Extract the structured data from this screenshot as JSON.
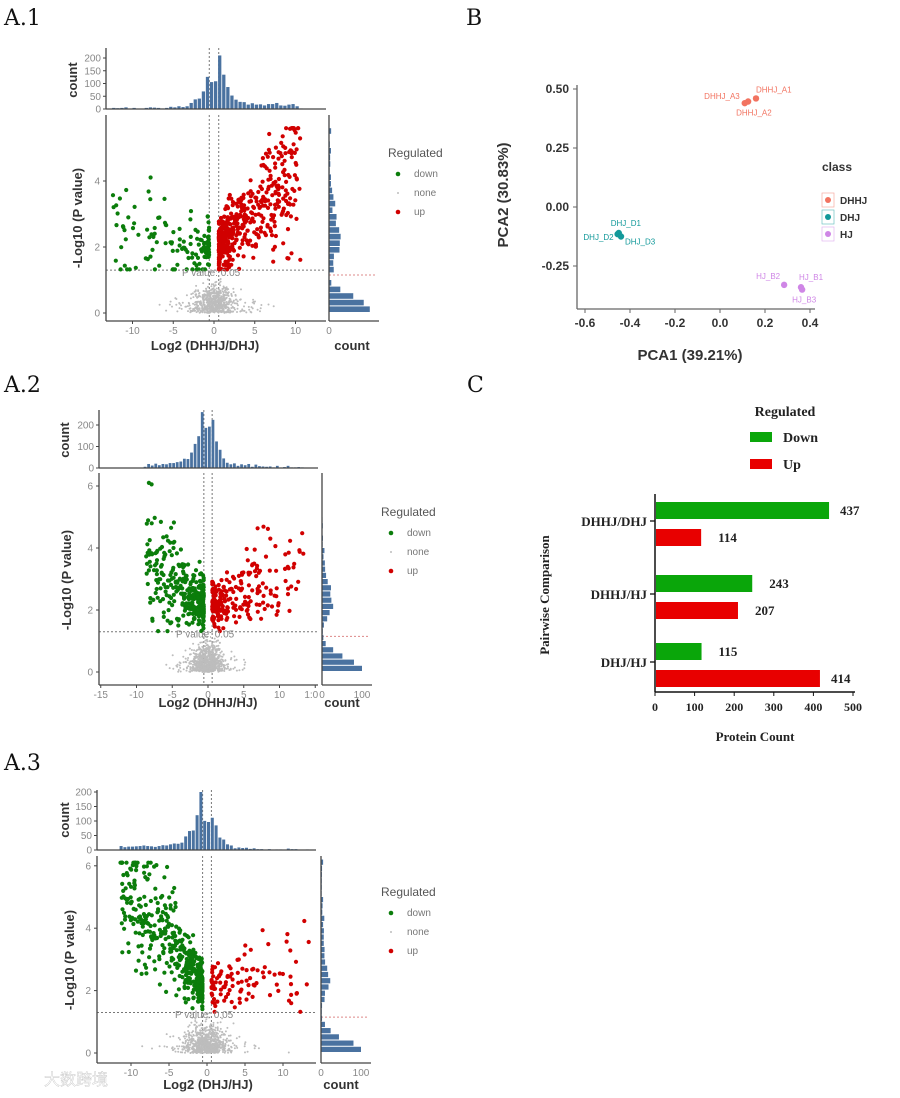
{
  "panel_labels": {
    "a1": "A.1",
    "b": "B",
    "a2": "A.2",
    "c": "C",
    "a3": "A.3"
  },
  "watermark": "大数跨境",
  "chart_data": [
    {
      "id": "a1",
      "type": "scatter",
      "title": "",
      "xlabel": "Log2 (DHHJ/DHJ)",
      "ylabel": "-Log10 (P value)",
      "top_hist_ylabel": "count",
      "right_hist_xlabel": "count",
      "xticks": [
        -10,
        -5,
        0,
        5,
        10
      ],
      "yticks": [
        0,
        2,
        4
      ],
      "top_hist_ticks": [
        0,
        50,
        100,
        150,
        200
      ],
      "right_hist_ticks": [
        0
      ],
      "top_hist_peak": 210,
      "right_hist_max": 48,
      "fc_threshold": 0.58,
      "p_threshold_neglog10": 1.3,
      "threshold_label": "P value: 0.05",
      "legend": {
        "title": "Regulated",
        "items": [
          "down",
          "none",
          "up"
        ]
      },
      "colors": {
        "down": "#0b7d0b",
        "none": "#bdbdbd",
        "up": "#d10000",
        "hist": "#4a72a0"
      },
      "groups": {
        "none": {
          "n": 700,
          "x_sd": 1.6,
          "y_max": 1.3
        },
        "down": {
          "n": 130,
          "x_range": [
            -12.5,
            -0.6
          ],
          "y_range": [
            1.3,
            5.1
          ],
          "trend": 0.1
        },
        "up": {
          "n": 480,
          "x_range": [
            0.6,
            10.8
          ],
          "y_range": [
            1.3,
            5.6
          ],
          "trend": 0.35
        }
      }
    },
    {
      "id": "a2",
      "type": "scatter",
      "xlabel": "Log2 (DHHJ/HJ)",
      "ylabel": "-Log10 (P value)",
      "top_hist_ylabel": "count",
      "right_hist_xlabel": "count",
      "xticks": [
        -15,
        -10,
        -5,
        0,
        5,
        10,
        15
      ],
      "xtick_labels": [
        "-15",
        "-10",
        "-5",
        "0",
        "5",
        "10",
        "1:0"
      ],
      "yticks": [
        0,
        2,
        4,
        6
      ],
      "top_hist_ticks": [
        0,
        100,
        200
      ],
      "right_hist_ticks": [
        0,
        100
      ],
      "right_hist_tick_labels": [
        "0",
        "100"
      ],
      "top_hist_peak": 260,
      "right_hist_max": 100,
      "fc_threshold": 0.58,
      "p_threshold_neglog10": 1.3,
      "threshold_label": "P value: 0.05",
      "legend": {
        "title": "Regulated",
        "items": [
          "down",
          "none",
          "up"
        ]
      },
      "colors": {
        "down": "#0b7d0b",
        "none": "#bdbdbd",
        "up": "#d10000",
        "hist": "#4a72a0"
      },
      "groups": {
        "none": {
          "n": 800,
          "x_sd": 1.5,
          "y_max": 1.3
        },
        "down": {
          "n": 330,
          "x_range": [
            -8.8,
            -0.6
          ],
          "y_range": [
            1.3,
            6.1
          ],
          "trend": 0.2
        },
        "up": {
          "n": 230,
          "x_range": [
            0.6,
            13.8
          ],
          "y_range": [
            1.3,
            5.9
          ],
          "trend": 0.15
        }
      }
    },
    {
      "id": "a3",
      "type": "scatter",
      "xlabel": "Log2 (DHJ/HJ)",
      "ylabel": "-Log10 (P value)",
      "top_hist_ylabel": "count",
      "right_hist_xlabel": "count",
      "xticks": [
        -10,
        -5,
        0,
        5,
        10
      ],
      "yticks": [
        0,
        2,
        4,
        6
      ],
      "top_hist_ticks": [
        0,
        50,
        100,
        150,
        200
      ],
      "right_hist_ticks": [
        0,
        100
      ],
      "right_hist_tick_labels": [
        "0",
        "100"
      ],
      "top_hist_peak": 200,
      "right_hist_max": 100,
      "fc_threshold": 0.58,
      "p_threshold_neglog10": 1.3,
      "threshold_label": "P value: 0.05",
      "legend": {
        "title": "Regulated",
        "items": [
          "down",
          "none",
          "up"
        ]
      },
      "colors": {
        "down": "#0b7d0b",
        "none": "#bdbdbd",
        "up": "#d10000",
        "hist": "#4a72a0"
      },
      "groups": {
        "none": {
          "n": 800,
          "x_sd": 1.8,
          "y_max": 1.3
        },
        "down": {
          "n": 460,
          "x_range": [
            -11.5,
            -0.6
          ],
          "y_range": [
            1.3,
            6.1
          ],
          "trend": 0.45
        },
        "up": {
          "n": 110,
          "x_range": [
            0.6,
            13.5
          ],
          "y_range": [
            1.3,
            6.0
          ],
          "trend": 0.15
        }
      }
    },
    {
      "id": "b",
      "type": "scatter",
      "title": "",
      "xlabel": "PCA1 (39.21%)",
      "ylabel": "PCA2 (30.83%)",
      "xlim": [
        -0.65,
        0.42
      ],
      "ylim": [
        -0.42,
        0.52
      ],
      "xticks": [
        -0.6,
        -0.4,
        -0.2,
        0.0,
        0.2,
        0.4
      ],
      "xtick_labels": [
        "-0.6",
        "-0.4",
        "-0.2",
        "0.0",
        "0.2",
        "0.4"
      ],
      "yticks": [
        0.5,
        0.25,
        0.0,
        -0.25
      ],
      "ytick_labels": [
        "0.50",
        "0.25",
        "0.00",
        "-0.25"
      ],
      "legend": {
        "title": "class",
        "items": [
          "DHHJ",
          "DHJ",
          "HJ"
        ]
      },
      "colors": {
        "DHHJ": "#f27360",
        "DHJ": "#12999a",
        "HJ": "#cf86e6"
      },
      "points": [
        {
          "label": "DHHJ_A1",
          "class": "DHHJ",
          "x": 0.16,
          "y": 0.46
        },
        {
          "label": "DHHJ_A2",
          "class": "DHHJ",
          "x": 0.125,
          "y": 0.447
        },
        {
          "label": "DHHJ_A3",
          "class": "DHHJ",
          "x": 0.11,
          "y": 0.44
        },
        {
          "label": "DHJ_D1",
          "class": "DHJ",
          "x": -0.45,
          "y": -0.11
        },
        {
          "label": "DHJ_D2",
          "class": "DHJ",
          "x": -0.455,
          "y": -0.115
        },
        {
          "label": "DHJ_D3",
          "class": "DHJ",
          "x": -0.44,
          "y": -0.125
        },
        {
          "label": "HJ_B1",
          "class": "HJ",
          "x": 0.36,
          "y": -0.34
        },
        {
          "label": "HJ_B2",
          "class": "HJ",
          "x": 0.285,
          "y": -0.33
        },
        {
          "label": "HJ_B3",
          "class": "HJ",
          "x": 0.365,
          "y": -0.35
        }
      ]
    },
    {
      "id": "c",
      "type": "bar",
      "orientation": "horizontal",
      "xlabel": "Protein Count",
      "ylabel": "Pairwise Comparison",
      "xlim": [
        0,
        500
      ],
      "xticks": [
        0,
        100,
        200,
        300,
        400,
        500
      ],
      "categories": [
        "DHHJ/DHJ",
        "DHHJ/HJ",
        "DHJ/HJ"
      ],
      "legend": {
        "title": "Regulated",
        "items": [
          "Down",
          "Up"
        ]
      },
      "colors": {
        "Down": "#0aa60a",
        "Up": "#e80000"
      },
      "series": [
        {
          "name": "Down",
          "values": [
            437,
            243,
            115
          ]
        },
        {
          "name": "Up",
          "values": [
            114,
            207,
            414
          ]
        }
      ]
    }
  ]
}
